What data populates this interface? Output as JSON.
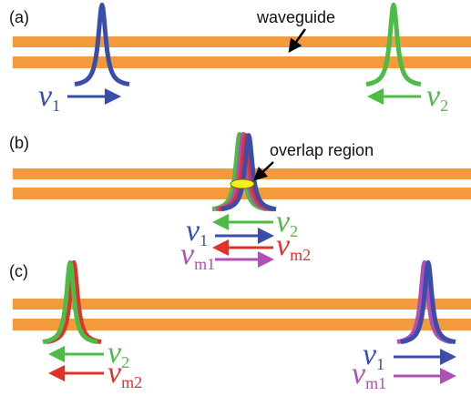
{
  "panels": [
    {
      "label": "(a)",
      "annotation": "waveguide",
      "arrows": [
        {
          "symbol": "ν",
          "subscript": "1"
        },
        {
          "symbol": "ν",
          "subscript": "2"
        }
      ]
    },
    {
      "label": "(b)",
      "annotation": "overlap region",
      "arrows": [
        {
          "symbol": "ν",
          "subscript": "2"
        },
        {
          "symbol": "ν",
          "subscript": "1"
        },
        {
          "symbol": "ν",
          "subscript": "m2"
        },
        {
          "symbol": "ν",
          "subscript": "m1"
        }
      ]
    },
    {
      "label": "(c)",
      "arrows": [
        {
          "symbol": "ν",
          "subscript": "2"
        },
        {
          "symbol": "ν",
          "subscript": "m2"
        },
        {
          "symbol": "ν",
          "subscript": "1"
        },
        {
          "symbol": "ν",
          "subscript": "m1"
        }
      ]
    }
  ]
}
